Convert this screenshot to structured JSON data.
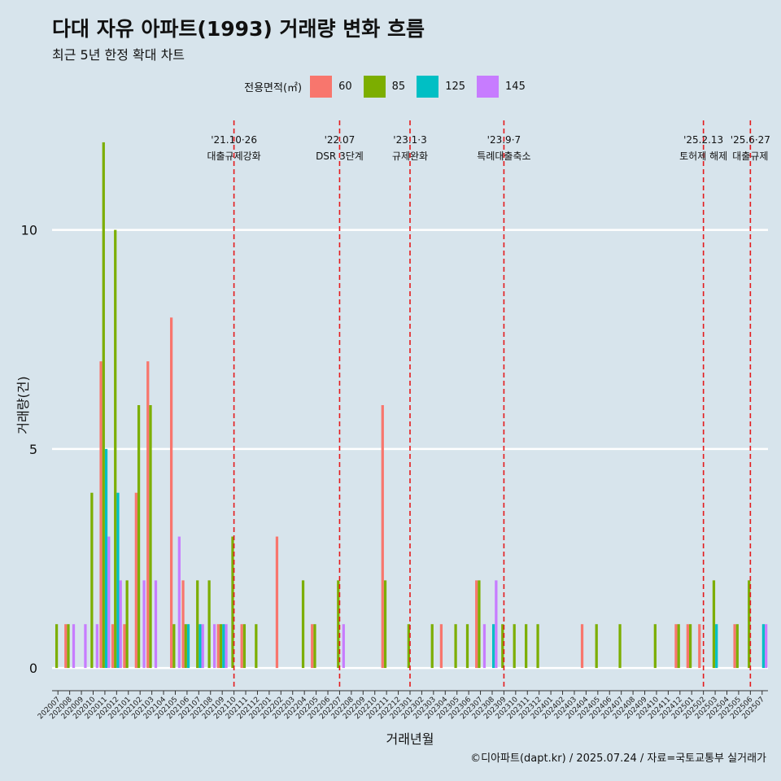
{
  "header": {
    "title": "다대 자유 아파트(1993) 거래량 변화 흐름",
    "subtitle": "최근 5년 한정 확대 차트"
  },
  "legend": {
    "title": "전용면적(㎡)",
    "items": [
      {
        "label": "60",
        "color": "#f8766d"
      },
      {
        "label": "85",
        "color": "#7cae00"
      },
      {
        "label": "125",
        "color": "#00bfc4"
      },
      {
        "label": "145",
        "color": "#c77cff"
      }
    ]
  },
  "caption": "©디아파트(dapt.kr) / 2025.07.24 / 자료=국토교통부 실거래가",
  "chart_data": {
    "type": "bar",
    "title": "다대 자유 아파트(1993) 거래량 변화 흐름",
    "subtitle": "최근 5년 한정 확대 차트",
    "xlabel": "거래년월",
    "ylabel": "거래량(건)",
    "ylim": [
      -0.5,
      12.5
    ],
    "y_ticks": [
      0,
      5,
      10
    ],
    "grid": "horizontal major lines",
    "legend_position": "top",
    "categories": [
      "202007",
      "202008",
      "202009",
      "202010",
      "202011",
      "202012",
      "202101",
      "202102",
      "202103",
      "202104",
      "202105",
      "202106",
      "202107",
      "202108",
      "202109",
      "202110",
      "202111",
      "202112",
      "202201",
      "202202",
      "202203",
      "202204",
      "202205",
      "202206",
      "202207",
      "202208",
      "202209",
      "202210",
      "202211",
      "202212",
      "202301",
      "202302",
      "202303",
      "202304",
      "202305",
      "202306",
      "202307",
      "202308",
      "202309",
      "202310",
      "202311",
      "202312",
      "202401",
      "202402",
      "202403",
      "202404",
      "202405",
      "202406",
      "202407",
      "202408",
      "202409",
      "202410",
      "202411",
      "202412",
      "202501",
      "202502",
      "202503",
      "202504",
      "202505",
      "202506",
      "202507"
    ],
    "series": [
      {
        "name": "60",
        "color": "#f8766d",
        "values": [
          0,
          1,
          0,
          0,
          7,
          1,
          1,
          4,
          7,
          0,
          8,
          2,
          0,
          0,
          1,
          0,
          1,
          0,
          0,
          3,
          0,
          0,
          1,
          0,
          0,
          0,
          0,
          0,
          6,
          0,
          0,
          0,
          0,
          1,
          0,
          0,
          2,
          0,
          0,
          0,
          0,
          0,
          0,
          0,
          0,
          1,
          0,
          0,
          0,
          0,
          0,
          0,
          0,
          1,
          1,
          1,
          0,
          0,
          1,
          0,
          0
        ]
      },
      {
        "name": "85",
        "color": "#7cae00",
        "values": [
          1,
          1,
          0,
          4,
          12,
          10,
          2,
          6,
          6,
          0,
          1,
          1,
          2,
          2,
          1,
          3,
          1,
          1,
          0,
          0,
          0,
          2,
          1,
          0,
          2,
          0,
          0,
          0,
          2,
          0,
          1,
          0,
          1,
          0,
          1,
          1,
          2,
          0,
          1,
          1,
          1,
          1,
          0,
          0,
          0,
          0,
          1,
          0,
          1,
          0,
          0,
          1,
          0,
          1,
          1,
          0,
          2,
          0,
          1,
          2,
          0
        ]
      },
      {
        "name": "125",
        "color": "#00bfc4",
        "values": [
          0,
          0,
          0,
          0,
          5,
          4,
          0,
          0,
          0,
          0,
          0,
          1,
          1,
          0,
          1,
          0,
          0,
          0,
          0,
          0,
          0,
          0,
          0,
          0,
          0,
          0,
          0,
          0,
          0,
          0,
          0,
          0,
          0,
          0,
          0,
          0,
          0,
          1,
          0,
          0,
          0,
          0,
          0,
          0,
          0,
          0,
          0,
          0,
          0,
          0,
          0,
          0,
          0,
          0,
          0,
          0,
          1,
          0,
          0,
          0,
          1
        ]
      },
      {
        "name": "145",
        "color": "#c77cff",
        "values": [
          0,
          1,
          1,
          1,
          3,
          2,
          0,
          2,
          2,
          0,
          3,
          0,
          1,
          1,
          1,
          0,
          0,
          0,
          0,
          0,
          0,
          0,
          0,
          0,
          1,
          0,
          0,
          0,
          0,
          0,
          0,
          0,
          0,
          0,
          0,
          0,
          1,
          2,
          0,
          0,
          0,
          0,
          0,
          0,
          0,
          0,
          0,
          0,
          0,
          0,
          0,
          0,
          0,
          0,
          0,
          0,
          0,
          0,
          0,
          0,
          1
        ]
      }
    ],
    "annotations": [
      {
        "x": "202110",
        "date": "'21.10·26",
        "text": "대출규제강화"
      },
      {
        "x": "202207",
        "date": "'22.07",
        "text": "DSR 3단계"
      },
      {
        "x": "202301",
        "date": "'23.1·3",
        "text": "규제완화"
      },
      {
        "x": "202309",
        "date": "'23.9·7",
        "text": "특례대출축소"
      },
      {
        "x": "202502",
        "date": "'25.2.13",
        "text": "토허제 해제"
      },
      {
        "x": "202506",
        "date": "'25.6·27",
        "text": "대출규제"
      }
    ]
  }
}
